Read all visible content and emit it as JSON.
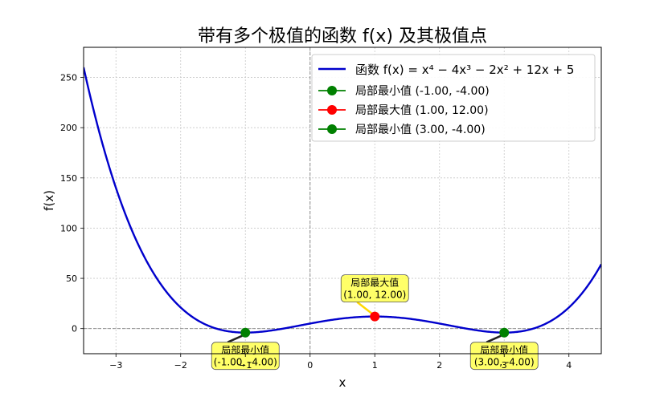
{
  "chart_data": {
    "type": "line",
    "title": "带有多个极值的函数 f(x) 及其极值点",
    "xlabel": "x",
    "ylabel": "f(x)",
    "xlim": [
      -3.5,
      4.5
    ],
    "ylim": [
      -25,
      280
    ],
    "x_ticks": [
      -3,
      -2,
      -1,
      0,
      1,
      2,
      3,
      4
    ],
    "y_ticks": [
      0,
      50,
      100,
      150,
      200,
      250
    ],
    "grid": true,
    "legend_position": "top-right",
    "function": {
      "name": "函数 f(x) = x⁴ − 4x³ − 2x² + 12x + 5",
      "coefficients": [
        1,
        -4,
        -2,
        12,
        5
      ],
      "color": "#0000cc"
    },
    "extrema": [
      {
        "name": "局部最小值 (-1.00, -4.00)",
        "x": -1.0,
        "y": -4.0,
        "color": "#008000",
        "annotation_title": "局部最小值",
        "annotation_value": "(-1.00, -4.00)",
        "annotation_position": "below"
      },
      {
        "name": "局部最大值 (1.00, 12.00)",
        "x": 1.0,
        "y": 12.0,
        "color": "#ff0000",
        "annotation_title": "局部最大值",
        "annotation_value": "(1.00, 12.00)",
        "annotation_position": "above"
      },
      {
        "name": "局部最小值 (3.00, -4.00)",
        "x": 3.0,
        "y": -4.0,
        "color": "#008000",
        "annotation_title": "局部最小值",
        "annotation_value": "(3.00, -4.00)",
        "annotation_position": "below"
      }
    ]
  }
}
